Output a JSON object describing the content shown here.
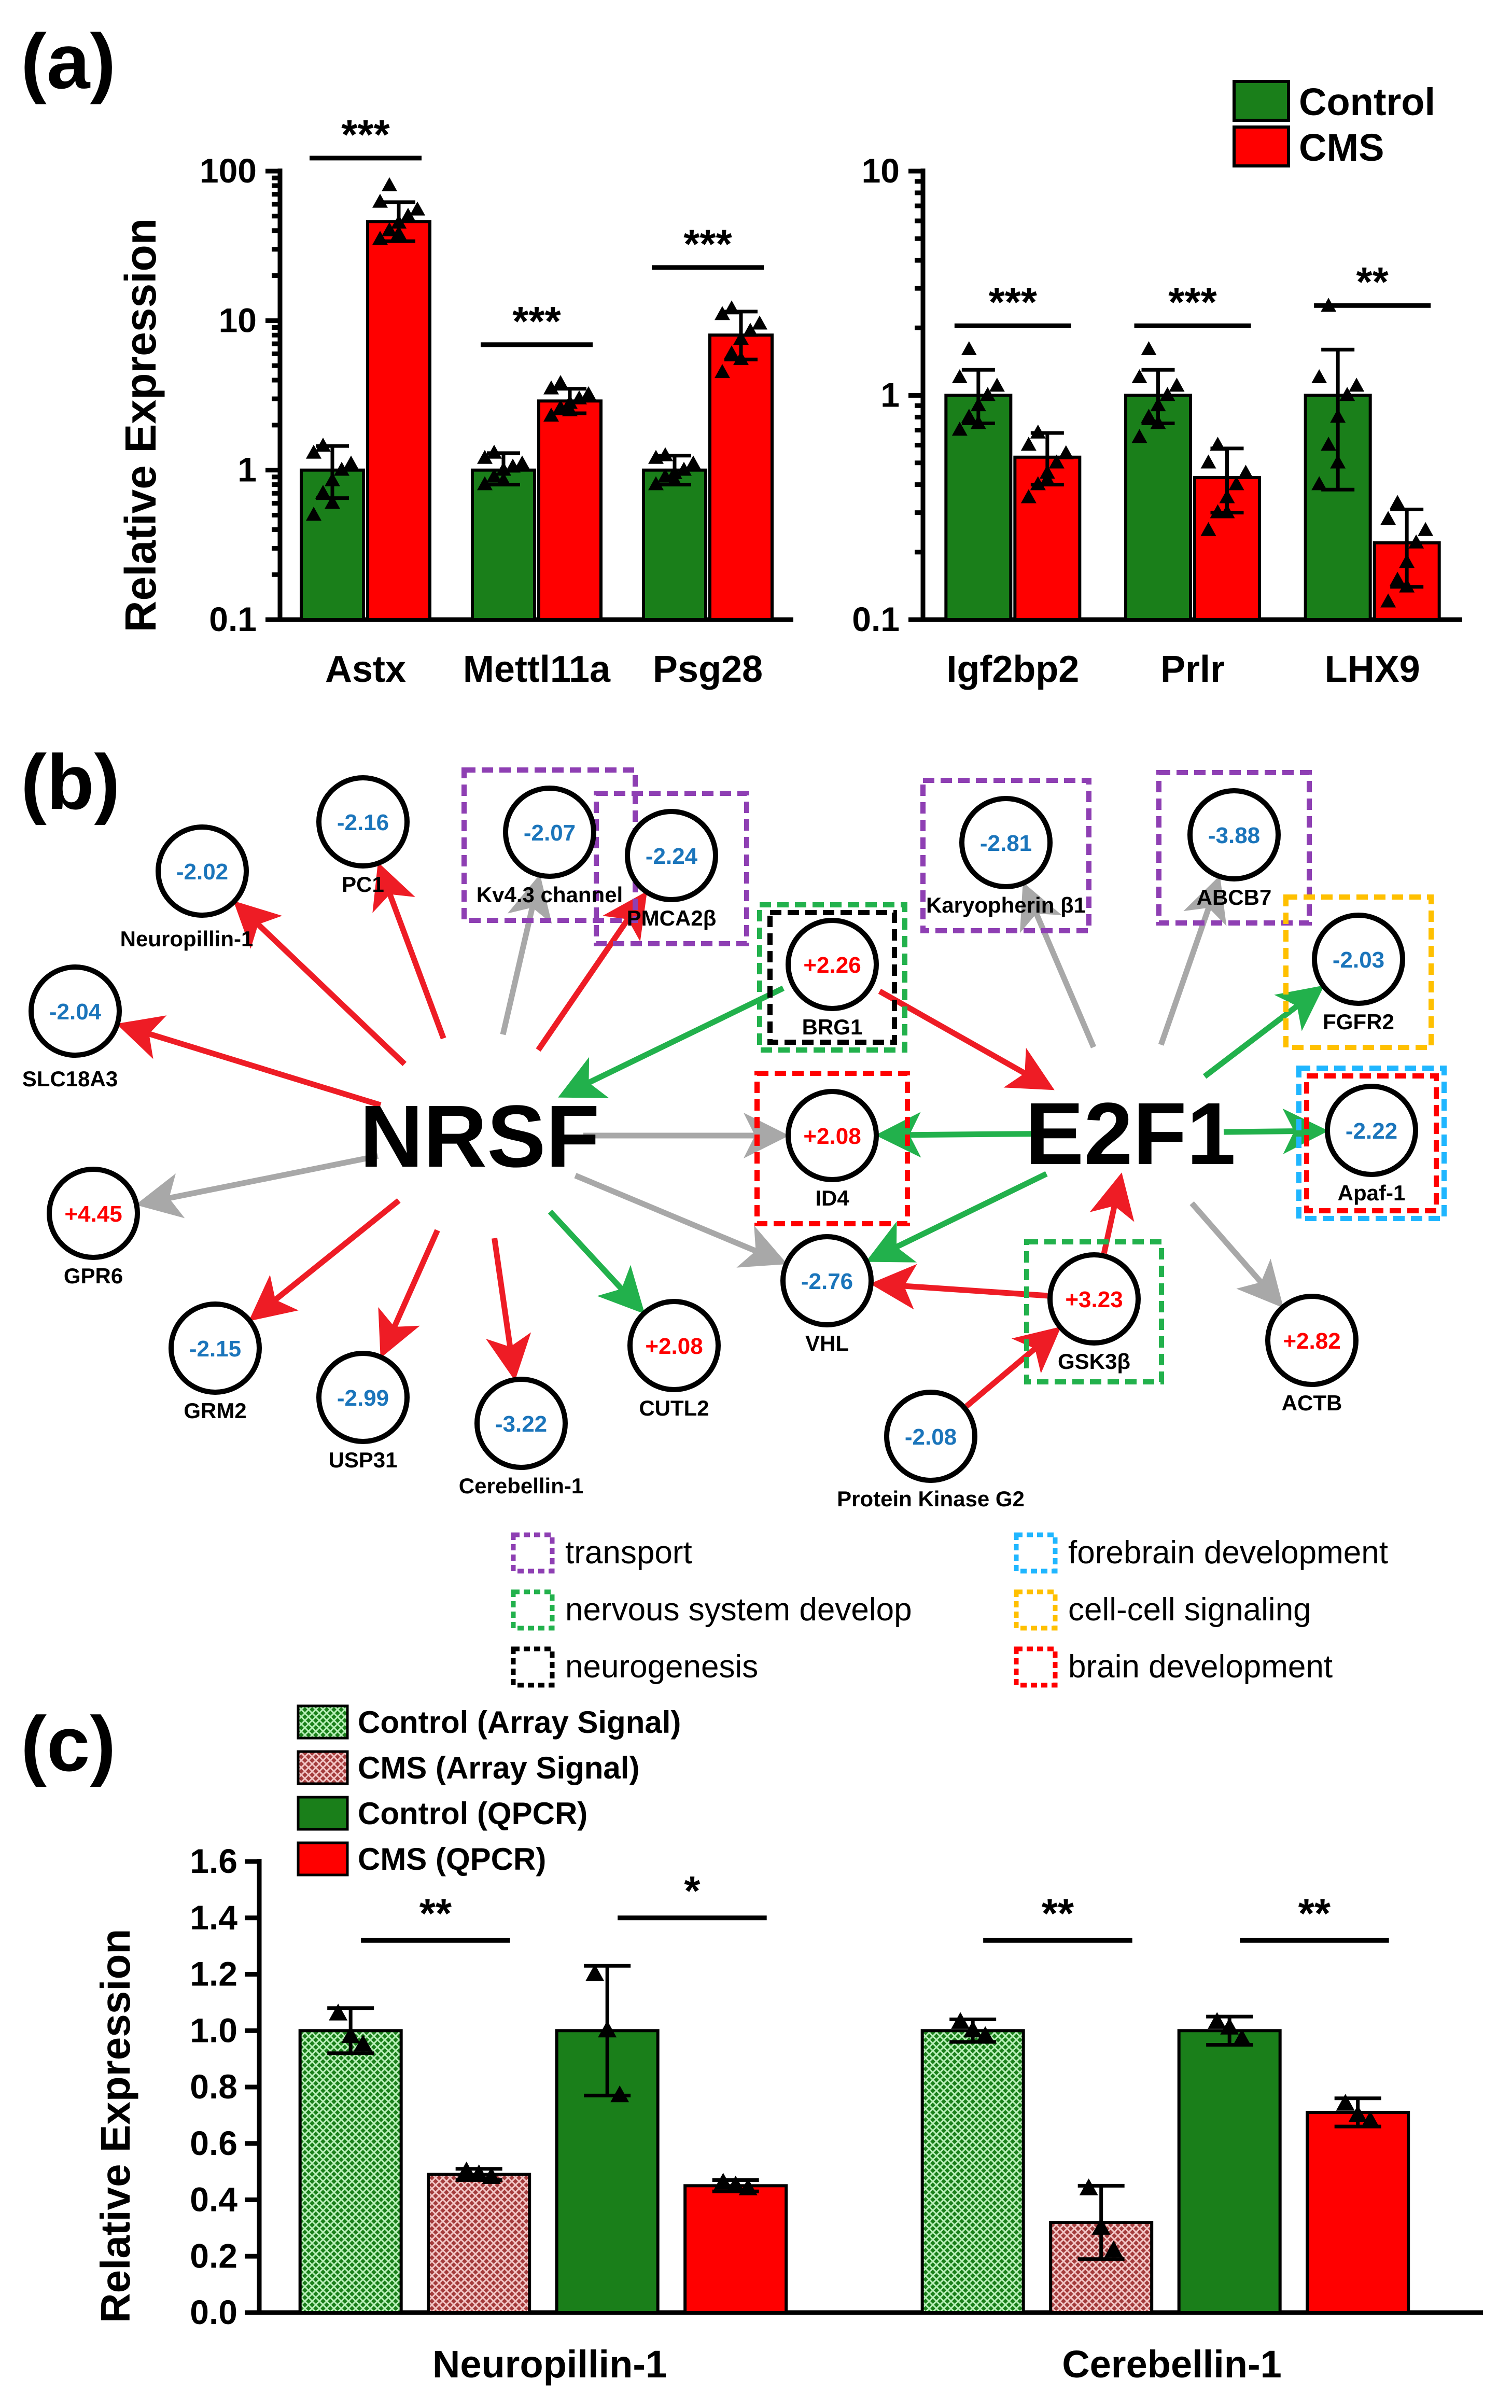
{
  "panels": {
    "a": "(a)",
    "b": "(b)",
    "c": "(c)"
  },
  "colors": {
    "control": "#1a7f1a",
    "cms": "#ff0000",
    "grey": "#a8a8a8",
    "blue_text": "#1b75bb",
    "red_text": "#ff0000",
    "purple": "#8e3fb3",
    "green_box": "#22b14c",
    "black_box": "#000000",
    "cyan": "#1fb6ff",
    "yellow": "#ffc000",
    "red_box": "#ff0000"
  },
  "chart_data": [
    {
      "type": "bar",
      "id": "a-left",
      "yscale": "log",
      "ylabel": "Relative Expression",
      "ylim": [
        0.1,
        100
      ],
      "yticks": [
        "0.1",
        "1",
        "10",
        "100"
      ],
      "categories": [
        "Astx",
        "Mettl11a",
        "Psg28"
      ],
      "series": [
        {
          "name": "Control",
          "values": [
            1.0,
            1.0,
            1.0
          ],
          "err_hi": [
            1.45,
            1.3,
            1.25
          ],
          "err_lo": [
            0.65,
            0.8,
            0.8
          ],
          "points": [
            [
              0.5,
              0.7,
              0.85,
              1.0,
              1.1,
              1.3,
              1.45,
              0.6
            ],
            [
              0.8,
              0.9,
              1.0,
              1.05,
              1.1,
              1.2,
              1.3,
              0.85
            ],
            [
              0.8,
              0.9,
              0.95,
              1.0,
              1.1,
              1.2,
              1.25,
              0.85
            ]
          ]
        },
        {
          "name": "CMS",
          "values": [
            46,
            2.9,
            8.0
          ],
          "err_hi": [
            62,
            3.5,
            11.5
          ],
          "err_lo": [
            34,
            2.4,
            5.5
          ],
          "points": [
            [
              35,
              40,
              45,
              50,
              55,
              62,
              80,
              38
            ],
            [
              2.3,
              2.6,
              2.8,
              3.0,
              3.2,
              3.5,
              3.8,
              2.5
            ],
            [
              4.5,
              6,
              7.5,
              8.5,
              9.5,
              11,
              12,
              5.5
            ]
          ]
        }
      ],
      "significance": [
        "***",
        "***",
        "***"
      ]
    },
    {
      "type": "bar",
      "id": "a-right",
      "yscale": "log",
      "ylim": [
        0.1,
        10
      ],
      "yticks": [
        "0.1",
        "1",
        "10"
      ],
      "categories": [
        "Igf2bp2",
        "Prlr",
        "LHX9"
      ],
      "series": [
        {
          "name": "Control",
          "values": [
            1.0,
            1.0,
            1.0
          ],
          "err_hi": [
            1.3,
            1.3,
            1.6
          ],
          "err_lo": [
            0.75,
            0.75,
            0.38
          ],
          "points": [
            [
              0.7,
              0.8,
              0.9,
              1.0,
              1.1,
              1.2,
              1.6,
              0.75
            ],
            [
              0.65,
              0.8,
              0.9,
              1.0,
              1.1,
              1.2,
              1.6,
              0.75
            ],
            [
              0.4,
              0.6,
              0.8,
              1.0,
              1.1,
              1.2,
              2.5,
              0.5
            ]
          ]
        },
        {
          "name": "CMS",
          "values": [
            0.53,
            0.43,
            0.22
          ],
          "err_hi": [
            0.68,
            0.58,
            0.31
          ],
          "err_lo": [
            0.4,
            0.3,
            0.14
          ],
          "points": [
            [
              0.35,
              0.4,
              0.45,
              0.5,
              0.55,
              0.6,
              0.68,
              0.42
            ],
            [
              0.25,
              0.3,
              0.35,
              0.4,
              0.45,
              0.5,
              0.6,
              0.3
            ],
            [
              0.12,
              0.15,
              0.18,
              0.22,
              0.25,
              0.28,
              0.33,
              0.14
            ]
          ]
        }
      ],
      "significance": [
        "***",
        "***",
        "**"
      ],
      "legend": [
        "Control",
        "CMS"
      ]
    },
    {
      "type": "bar",
      "id": "c",
      "ylabel": "Relative Expression",
      "ylim": [
        0.0,
        1.6
      ],
      "yticks": [
        "0.0",
        "0.2",
        "0.4",
        "0.6",
        "0.8",
        "1.0",
        "1.2",
        "1.4",
        "1.6"
      ],
      "categories": [
        "Neuropillin-1",
        "Cerebellin-1"
      ],
      "series": [
        {
          "name": "Control (Array Signal)",
          "values": [
            1.0,
            1.0
          ],
          "err_hi": [
            1.08,
            1.04
          ],
          "err_lo": [
            0.92,
            0.96
          ],
          "points": [
            [
              1.06,
              0.98,
              0.95
            ],
            [
              1.03,
              1.0,
              0.98
            ]
          ]
        },
        {
          "name": "CMS (Array Signal)",
          "values": [
            0.49,
            0.32
          ],
          "err_hi": [
            0.51,
            0.45
          ],
          "err_lo": [
            0.47,
            0.19
          ],
          "points": [
            [
              0.5,
              0.49,
              0.48
            ],
            [
              0.44,
              0.3,
              0.22
            ]
          ]
        },
        {
          "name": "Control (QPCR)",
          "values": [
            1.0,
            1.0
          ],
          "err_hi": [
            1.23,
            1.05
          ],
          "err_lo": [
            0.77,
            0.95
          ],
          "points": [
            [
              1.2,
              1.0,
              0.77
            ],
            [
              1.03,
              1.01,
              0.97
            ]
          ]
        },
        {
          "name": "CMS (QPCR)",
          "values": [
            0.45,
            0.71
          ],
          "err_hi": [
            0.47,
            0.76
          ],
          "err_lo": [
            0.43,
            0.66
          ],
          "points": [
            [
              0.46,
              0.45,
              0.44
            ],
            [
              0.74,
              0.7,
              0.68
            ]
          ]
        }
      ],
      "significance": [
        "**",
        "*",
        "**",
        "**"
      ]
    }
  ],
  "network": {
    "hubs": [
      "NRSF",
      "E2F1"
    ],
    "nodes": [
      {
        "id": "PC1",
        "name": "PC1",
        "value": "-2.16"
      },
      {
        "id": "Kv43",
        "name": "Kv4.3 channel",
        "value": "-2.07"
      },
      {
        "id": "Neuropilin",
        "name": "Neuropillin-1",
        "value": "-2.02"
      },
      {
        "id": "PMCA",
        "name": "PMCA2β",
        "value": "-2.24"
      },
      {
        "id": "SLC",
        "name": "SLC18A3",
        "value": "-2.04"
      },
      {
        "id": "BRG1",
        "name": "BRG1",
        "value": "+2.26"
      },
      {
        "id": "ID4",
        "name": "ID4",
        "value": "+2.08"
      },
      {
        "id": "GPR6",
        "name": "GPR6",
        "value": "+4.45"
      },
      {
        "id": "GRM2",
        "name": "GRM2",
        "value": "-2.15"
      },
      {
        "id": "USP31",
        "name": "USP31",
        "value": "-2.99"
      },
      {
        "id": "Cbln",
        "name": "Cerebellin-1",
        "value": "-3.22"
      },
      {
        "id": "CUTL2",
        "name": "CUTL2",
        "value": "+2.08"
      },
      {
        "id": "VHL",
        "name": "VHL",
        "value": "-2.76"
      },
      {
        "id": "GSK",
        "name": "GSK3β",
        "value": "+3.23"
      },
      {
        "id": "PKG2",
        "name": "Protein Kinase G2",
        "value": "-2.08"
      },
      {
        "id": "Karyo",
        "name": "Karyopherin β1",
        "value": "-2.81"
      },
      {
        "id": "ABCB7",
        "name": "ABCB7",
        "value": "-3.88"
      },
      {
        "id": "FGFR2",
        "name": "FGFR2",
        "value": "-2.03"
      },
      {
        "id": "Apaf",
        "name": "Apaf-1",
        "value": "-2.22"
      },
      {
        "id": "ACTB",
        "name": "ACTB",
        "value": "+2.82"
      }
    ],
    "annotation_legend": [
      "transport",
      "nervous system develop",
      "neurogenesis",
      "forebrain development",
      "cell-cell signaling",
      "brain development"
    ]
  }
}
